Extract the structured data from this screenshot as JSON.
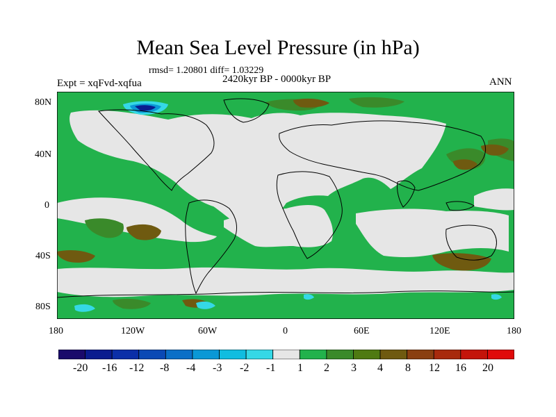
{
  "title": "Mean Sea Level Pressure (in hPa)",
  "stats": "rmsd= 1.20801 diff= 1.03229",
  "period": "2420kyr BP - 0000kyr BP",
  "experiment": "Expt = xqFvd-xqfua",
  "season": "ANN",
  "y_ticks": [
    "80N",
    "40N",
    "0",
    "40S",
    "80S"
  ],
  "x_ticks": [
    "180",
    "120W",
    "60W",
    "0",
    "60E",
    "120E",
    "180"
  ],
  "legend": {
    "labels": [
      "-20",
      "-16",
      "-12",
      "-8",
      "-4",
      "-3",
      "-2",
      "-1",
      "1",
      "2",
      "3",
      "4",
      "8",
      "12",
      "16",
      "20"
    ],
    "colors": [
      "#1a0a6b",
      "#0a1c8f",
      "#0b2fa8",
      "#0a49b5",
      "#0a6fc7",
      "#0a98d6",
      "#10bde0",
      "#35d8e6",
      "#e6e6e6",
      "#22b24c",
      "#3a8a2a",
      "#4f7a12",
      "#6f5a10",
      "#8a3f10",
      "#a82a0c",
      "#c4140a",
      "#e00a0a"
    ]
  },
  "colors": {
    "background": "#ffffff",
    "neutral": "#e6e6e6",
    "green": "#22b24c",
    "dark_green": "#3a8a2a",
    "olive": "#6f5a10",
    "light_blue": "#35d8e6",
    "mid_blue": "#0a98d6",
    "dark_blue": "#0a1c8f"
  }
}
